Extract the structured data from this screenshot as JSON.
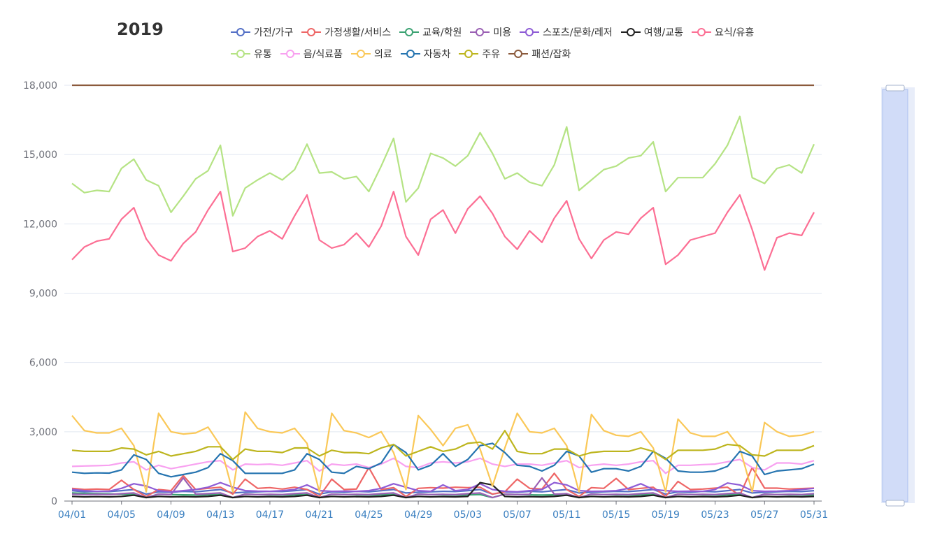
{
  "chart_data": {
    "type": "line",
    "title": "2019",
    "legend_rows": [
      [
        "가전/가구",
        "가정생활/서비스",
        "교육/학원",
        "미용",
        "스포츠/문화/레저",
        "여행/교통",
        "요식/유흥"
      ],
      [
        "유통",
        "음/식료품",
        "의료",
        "자동차",
        "주유",
        "패션/잡화"
      ]
    ],
    "legend_placement": "top",
    "y_ticks": [
      "0",
      "3,000",
      "6,000",
      "9,000",
      "12,000",
      "15,000",
      "18,000"
    ],
    "ylim": [
      0,
      18000
    ],
    "grid": true,
    "x_ticks": [
      "04/01",
      "04/05",
      "04/09",
      "04/13",
      "04/17",
      "04/21",
      "04/25",
      "04/29",
      "05/03",
      "05/07",
      "05/11",
      "05/15",
      "05/19",
      "05/23",
      "05/27",
      "05/31"
    ],
    "x": [
      "04/01",
      "04/02",
      "04/03",
      "04/04",
      "04/05",
      "04/06",
      "04/07",
      "04/08",
      "04/09",
      "04/10",
      "04/11",
      "04/12",
      "04/13",
      "04/14",
      "04/15",
      "04/16",
      "04/17",
      "04/18",
      "04/19",
      "04/20",
      "04/21",
      "04/22",
      "04/23",
      "04/24",
      "04/25",
      "04/26",
      "04/27",
      "04/28",
      "04/29",
      "04/30",
      "05/01",
      "05/02",
      "05/03",
      "05/04",
      "05/05",
      "05/06",
      "05/07",
      "05/08",
      "05/09",
      "05/10",
      "05/11",
      "05/12",
      "05/13",
      "05/14",
      "05/15",
      "05/16",
      "05/17",
      "05/18",
      "05/19",
      "05/20",
      "05/21",
      "05/22",
      "05/23",
      "05/24",
      "05/25",
      "05/26",
      "05/27",
      "05/28",
      "05/29",
      "05/30",
      "05/31"
    ],
    "series": [
      {
        "name": "가전/가구",
        "color": "#5470c6",
        "values": [
          450,
          400,
          420,
          410,
          450,
          500,
          300,
          400,
          380,
          420,
          400,
          450,
          500,
          350,
          380,
          400,
          420,
          410,
          450,
          500,
          300,
          400,
          380,
          420,
          400,
          450,
          500,
          350,
          380,
          400,
          420,
          410,
          450,
          500,
          300,
          400,
          380,
          420,
          400,
          450,
          500,
          350,
          380,
          400,
          420,
          410,
          450,
          500,
          300,
          400,
          380,
          420,
          400,
          450,
          500,
          350,
          380,
          400,
          420,
          410,
          450
        ]
      },
      {
        "name": "가정생활/서비스",
        "color": "#ee6666",
        "values": [
          550,
          500,
          520,
          500,
          900,
          500,
          200,
          500,
          450,
          1100,
          500,
          550,
          600,
          300,
          950,
          550,
          580,
          520,
          600,
          500,
          200,
          950,
          500,
          520,
          1450,
          500,
          580,
          200,
          550,
          580,
          560,
          600,
          580,
          600,
          300,
          400,
          950,
          550,
          520,
          1200,
          500,
          200,
          580,
          550,
          980,
          500,
          550,
          600,
          200,
          850,
          500,
          520,
          560,
          600,
          250,
          1450,
          560,
          560,
          520,
          540,
          560
        ]
      },
      {
        "name": "교육/학원",
        "color": "#3ba272",
        "values": [
          350,
          330,
          320,
          310,
          300,
          280,
          150,
          300,
          280,
          270,
          260,
          270,
          280,
          150,
          300,
          280,
          270,
          260,
          270,
          280,
          150,
          300,
          280,
          270,
          260,
          270,
          280,
          150,
          300,
          280,
          270,
          260,
          270,
          280,
          150,
          300,
          280,
          270,
          260,
          270,
          280,
          150,
          300,
          280,
          270,
          260,
          270,
          280,
          150,
          300,
          280,
          270,
          260,
          270,
          280,
          150,
          300,
          280,
          270,
          260,
          270
        ]
      },
      {
        "name": "미용",
        "color": "#9a60b4",
        "values": [
          300,
          280,
          290,
          280,
          320,
          350,
          150,
          300,
          280,
          1000,
          300,
          320,
          350,
          150,
          300,
          280,
          290,
          280,
          320,
          350,
          150,
          300,
          280,
          290,
          280,
          320,
          350,
          150,
          300,
          280,
          290,
          280,
          320,
          350,
          150,
          300,
          280,
          290,
          1000,
          300,
          320,
          150,
          300,
          280,
          290,
          280,
          320,
          350,
          150,
          300,
          280,
          290,
          280,
          320,
          350,
          150,
          300,
          280,
          290,
          280,
          320
        ]
      },
      {
        "name": "스포츠/문화/레저",
        "color": "#8e5cd6",
        "values": [
          500,
          450,
          420,
          430,
          550,
          750,
          650,
          450,
          400,
          450,
          500,
          600,
          800,
          600,
          450,
          430,
          420,
          450,
          500,
          700,
          450,
          420,
          430,
          420,
          450,
          550,
          750,
          600,
          450,
          420,
          700,
          450,
          500,
          750,
          500,
          420,
          400,
          450,
          500,
          800,
          700,
          450,
          420,
          430,
          450,
          550,
          750,
          500,
          450,
          420,
          430,
          420,
          500,
          780,
          700,
          450,
          420,
          430,
          450,
          500,
          550
        ]
      },
      {
        "name": "여행/교통",
        "color": "#222222",
        "values": [
          200,
          180,
          190,
          180,
          200,
          250,
          150,
          200,
          180,
          190,
          180,
          200,
          250,
          150,
          200,
          180,
          190,
          180,
          200,
          250,
          150,
          200,
          180,
          190,
          180,
          200,
          250,
          150,
          200,
          180,
          190,
          180,
          200,
          800,
          700,
          200,
          180,
          190,
          180,
          200,
          250,
          150,
          200,
          180,
          190,
          180,
          200,
          250,
          150,
          200,
          180,
          190,
          180,
          200,
          250,
          150,
          200,
          180,
          190,
          180,
          200
        ]
      },
      {
        "name": "요식/유흥",
        "color": "#fc6f94",
        "values": [
          10450,
          11000,
          11250,
          11350,
          12200,
          12700,
          11350,
          10650,
          10400,
          11150,
          11650,
          12600,
          13400,
          10800,
          10950,
          11450,
          11700,
          11350,
          12350,
          13250,
          11300,
          10950,
          11100,
          11600,
          11000,
          11900,
          13400,
          11450,
          10650,
          12200,
          12600,
          11600,
          12650,
          13200,
          12450,
          11450,
          10900,
          11700,
          11200,
          12250,
          13000,
          11350,
          10500,
          11300,
          11650,
          11550,
          12250,
          12700,
          10250,
          10650,
          11300,
          11450,
          11600,
          12500,
          13250,
          11750,
          10000,
          11400,
          11600,
          11500,
          12500
        ]
      },
      {
        "name": "유통",
        "color": "#b5e384",
        "values": [
          13750,
          13350,
          13450,
          13400,
          14400,
          14800,
          13900,
          13650,
          12500,
          13200,
          13950,
          14300,
          15400,
          12350,
          13550,
          13900,
          14200,
          13900,
          14350,
          15450,
          14200,
          14250,
          13950,
          14050,
          13400,
          14500,
          15700,
          12950,
          13550,
          15050,
          14850,
          14500,
          14950,
          15950,
          15050,
          13950,
          14200,
          13800,
          13650,
          14550,
          16200,
          13450,
          13900,
          14350,
          14500,
          14850,
          14950,
          15550,
          13400,
          14000,
          14000,
          14000,
          14600,
          15400,
          16650,
          14000,
          13750,
          14400,
          14550,
          14200,
          15450
        ]
      },
      {
        "name": "음/식료품",
        "color": "#f8a1f0",
        "values": [
          1500,
          1520,
          1530,
          1550,
          1650,
          1700,
          1350,
          1550,
          1400,
          1500,
          1600,
          1700,
          1750,
          1350,
          1600,
          1580,
          1600,
          1550,
          1650,
          1750,
          1300,
          1600,
          1550,
          1600,
          1450,
          1600,
          1850,
          1500,
          1450,
          1650,
          1700,
          1650,
          1700,
          1850,
          1600,
          1500,
          1600,
          1600,
          1550,
          1650,
          1750,
          1450,
          1550,
          1600,
          1550,
          1600,
          1700,
          1750,
          1200,
          1550,
          1550,
          1580,
          1600,
          1700,
          1800,
          1450,
          1350,
          1650,
          1650,
          1600,
          1750
        ]
      },
      {
        "name": "의료",
        "color": "#fac858",
        "values": [
          3700,
          3050,
          2950,
          2950,
          3150,
          2400,
          400,
          3800,
          3000,
          2900,
          2950,
          3200,
          2400,
          400,
          3850,
          3150,
          3000,
          2950,
          3150,
          2500,
          400,
          3800,
          3050,
          2950,
          2750,
          3000,
          2100,
          500,
          3700,
          3100,
          2400,
          3150,
          3300,
          2250,
          650,
          2300,
          3800,
          3000,
          2950,
          3150,
          2400,
          400,
          3750,
          3050,
          2850,
          2800,
          3000,
          2300,
          400,
          3550,
          2950,
          2800,
          2800,
          3000,
          2300,
          400,
          3400,
          3000,
          2800,
          2850,
          3000
        ]
      },
      {
        "name": "자동차",
        "color": "#2574b0",
        "values": [
          1250,
          1200,
          1220,
          1210,
          1350,
          2000,
          1800,
          1200,
          1050,
          1150,
          1250,
          1450,
          2050,
          1750,
          1200,
          1200,
          1200,
          1200,
          1350,
          2050,
          1800,
          1250,
          1200,
          1500,
          1400,
          1650,
          2450,
          2100,
          1350,
          1550,
          2050,
          1500,
          1800,
          2400,
          2500,
          2100,
          1550,
          1500,
          1300,
          1550,
          2150,
          1950,
          1250,
          1400,
          1400,
          1300,
          1500,
          2150,
          1850,
          1300,
          1250,
          1250,
          1300,
          1500,
          2150,
          1950,
          1150,
          1300,
          1350,
          1400,
          1600
        ]
      },
      {
        "name": "주유",
        "color": "#bdb51e",
        "values": [
          2200,
          2150,
          2150,
          2150,
          2300,
          2250,
          2000,
          2150,
          1950,
          2050,
          2150,
          2350,
          2350,
          1800,
          2250,
          2150,
          2150,
          2100,
          2300,
          2300,
          1950,
          2200,
          2100,
          2100,
          2050,
          2300,
          2450,
          1950,
          2150,
          2350,
          2150,
          2250,
          2500,
          2550,
          2250,
          3050,
          2150,
          2050,
          2050,
          2250,
          2250,
          1950,
          2100,
          2150,
          2150,
          2150,
          2300,
          2150,
          1800,
          2200,
          2200,
          2200,
          2250,
          2450,
          2400,
          2000,
          1950,
          2200,
          2200,
          2200,
          2400
        ]
      },
      {
        "name": "패션/잡화",
        "color": "#8b5a3c",
        "values": [
          18000,
          18000,
          18000,
          18000,
          18000,
          18000,
          18000,
          18000,
          18000,
          18000,
          18000,
          18000,
          18000,
          18000,
          18000,
          18000,
          18000,
          18000,
          18000,
          18000,
          18000,
          18000,
          18000,
          18000,
          18000,
          18000,
          18000,
          18000,
          18000,
          18000,
          18000,
          18000,
          18000,
          18000,
          18000,
          18000,
          18000,
          18000,
          18000,
          18000,
          18000,
          18000,
          18000,
          18000,
          18000,
          18000,
          18000,
          18000,
          18000,
          18000,
          18000,
          18000,
          18000,
          18000,
          18000,
          18000,
          18000,
          18000,
          18000,
          18000,
          18000
        ]
      }
    ]
  }
}
